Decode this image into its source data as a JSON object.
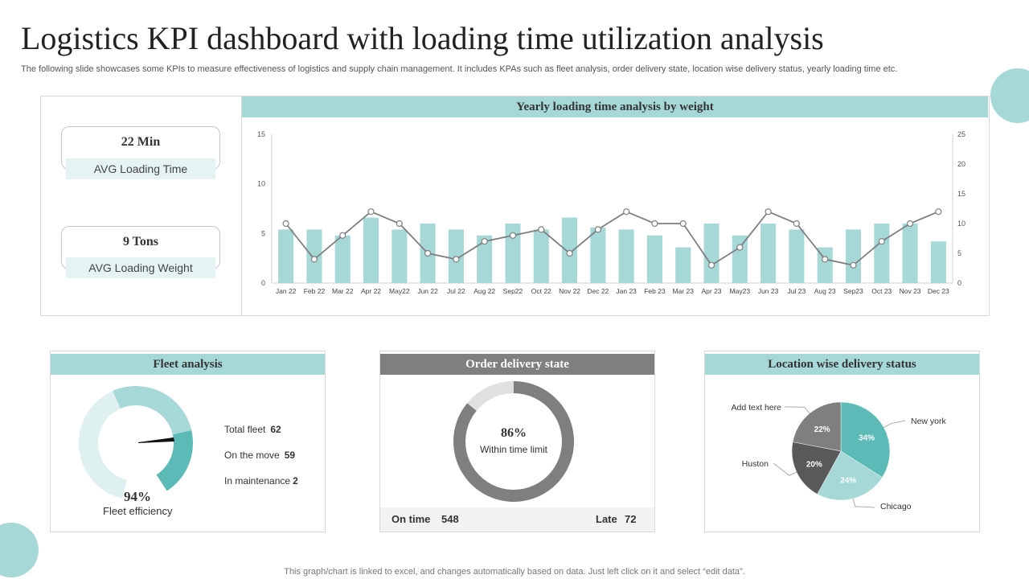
{
  "page": {
    "title": "Logistics KPI dashboard with loading time utilization analysis",
    "subtitle": "The following slide showcases some KPIs to measure effectiveness of logistics and supply chain management. It includes KPAs such as fleet analysis, order delivery state, location wise delivery status, yearly loading time etc.",
    "footnote": "This graph/chart is linked to excel, and changes automatically based on data. Just left click on it and select “edit data”."
  },
  "kpis": [
    {
      "value": "22 Min",
      "label": "AVG Loading Time"
    },
    {
      "value": "9 Tons",
      "label": "AVG Loading Weight"
    }
  ],
  "yearly": {
    "heading": "Yearly loading time analysis by weight"
  },
  "fleet": {
    "heading": "Fleet analysis",
    "efficiency": "94%",
    "efficiency_label": "Fleet efficiency",
    "rows": [
      {
        "label": "Total fleet",
        "value": "62"
      },
      {
        "label": "On the move",
        "value": "59"
      },
      {
        "label": "In maintenance",
        "value": "2"
      }
    ]
  },
  "order": {
    "heading": "Order delivery state",
    "percent": "86%",
    "percent_label": "Within time limit",
    "on_time_label": "On time",
    "on_time_value": "548",
    "late_label": "Late",
    "late_value": "72"
  },
  "location": {
    "heading": "Location wise delivery status"
  },
  "colors": {
    "teal": "#a6d8d8",
    "teal_dark": "#5dbbb7",
    "line": "#7f7f7f",
    "gray_dark": "#595959",
    "gray_mid": "#7f7f7f",
    "gray_light": "#e0e0e0"
  },
  "chart_data": [
    {
      "type": "bar",
      "title": "Yearly loading time analysis by weight",
      "categories": [
        "Jan 22",
        "Feb 22",
        "Mar 22",
        "Apr 22",
        "May22",
        "Jun 22",
        "Jul 22",
        "Aug 22",
        "Sep22",
        "Oct 22",
        "Nov 22",
        "Dec 22",
        "Jan 23",
        "Feb 23",
        "Mar 23",
        "Apr 23",
        "May23",
        "Jun 23",
        "Jul 23",
        "Aug 23",
        "Sep23",
        "Oct 23",
        "Nov 23",
        "Dec 23"
      ],
      "series": [
        {
          "type": "bar",
          "axis": "left",
          "values": [
            5.4,
            5.4,
            4.8,
            6.6,
            5.4,
            6.0,
            5.4,
            4.8,
            6.0,
            5.4,
            6.6,
            5.6,
            5.4,
            4.8,
            3.6,
            6.0,
            4.8,
            6.0,
            5.4,
            3.6,
            5.4,
            6.0,
            6.0,
            4.2
          ]
        },
        {
          "type": "line",
          "axis": "right",
          "values": [
            10,
            4,
            8,
            12,
            10,
            5,
            4,
            7,
            8,
            9,
            5,
            9,
            12,
            10,
            10,
            3,
            6,
            12,
            10,
            4,
            3,
            7,
            10,
            12
          ]
        }
      ],
      "ylim_left": [
        0,
        15
      ],
      "yticks_left": [
        0,
        5,
        10,
        15
      ],
      "ylim_right": [
        0,
        25
      ],
      "yticks_right": [
        0,
        5,
        10,
        15,
        20,
        25
      ],
      "grid": false
    },
    {
      "type": "pie",
      "title": "Location wise delivery status",
      "labels": [
        "New york",
        "Chicago",
        "Huston",
        "Add text here"
      ],
      "values": [
        34,
        24,
        20,
        22
      ],
      "value_labels": [
        "34%",
        "24%",
        "20%",
        "22%"
      ],
      "colors": [
        "#5dbbb7",
        "#a6d8d8",
        "#595959",
        "#7f7f7f"
      ]
    },
    {
      "type": "pie",
      "title": "Order delivery state",
      "labels": [
        "Within time limit",
        "Other"
      ],
      "values": [
        86,
        14
      ],
      "colors": [
        "#7f7f7f",
        "#e0e0e0"
      ]
    },
    {
      "type": "pie",
      "title": "Fleet analysis",
      "value": 94,
      "value_label": "94%"
    }
  ]
}
